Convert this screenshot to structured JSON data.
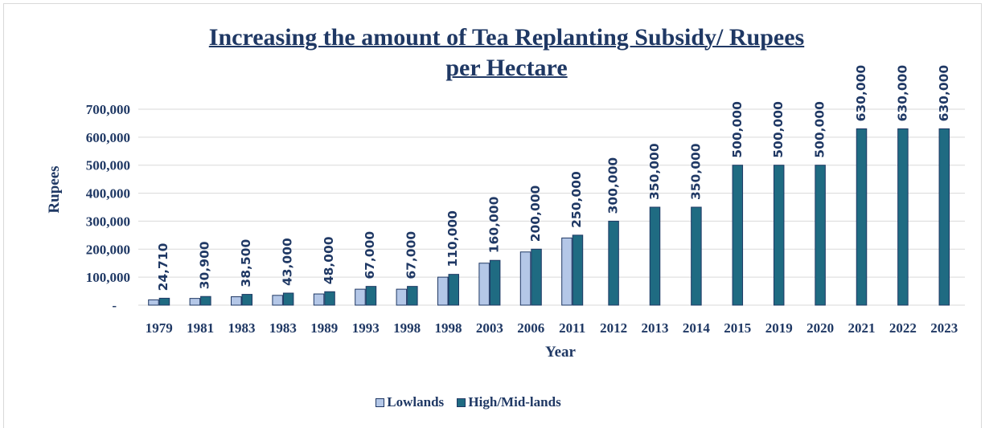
{
  "chart_data": {
    "type": "bar",
    "title_line1": "Increasing the amount of Tea Replanting Subsidy/ Rupees",
    "title_line2": "per Hectare",
    "xlabel": "Year",
    "ylabel": "Rupees",
    "ylim": [
      0,
      700000
    ],
    "ytick_values": [
      0,
      100000,
      200000,
      300000,
      400000,
      500000,
      600000,
      700000
    ],
    "ytick_labels": [
      "-",
      "100,000",
      "200,000",
      "300,000",
      "400,000",
      "500,000",
      "600,000",
      "700,000"
    ],
    "grid": true,
    "legend_position": "bottom",
    "categories": [
      "1979",
      "1981",
      "1983",
      "1983",
      "1989",
      "1993",
      "1998",
      "1998",
      "2003",
      "2006",
      "2011",
      "2012",
      "2013",
      "2014",
      "2015",
      "2019",
      "2020",
      "2021",
      "2022",
      "2023"
    ],
    "series": [
      {
        "name": "Lowlands",
        "color": "#b4c7e7",
        "values": [
          19000,
          24000,
          30000,
          35000,
          40000,
          57000,
          57000,
          100000,
          150000,
          190000,
          240000,
          null,
          null,
          null,
          null,
          null,
          null,
          null,
          null,
          null
        ]
      },
      {
        "name": "High/Mid-lands",
        "color": "#1f6b82",
        "values": [
          24710,
          30900,
          38500,
          43000,
          48000,
          67000,
          67000,
          110000,
          160000,
          200000,
          250000,
          300000,
          350000,
          350000,
          500000,
          500000,
          500000,
          630000,
          630000,
          630000
        ],
        "data_labels": [
          "24,710",
          "30,900",
          "38,500",
          "43,000",
          "48,000",
          "67,000",
          "67,000",
          "110,000",
          "160,000",
          "200,000",
          "250,000",
          "300,000",
          "350,000",
          "350,000",
          "500,000",
          "500,000",
          "500,000",
          "630,000",
          "630,000",
          "630,000"
        ]
      }
    ]
  }
}
